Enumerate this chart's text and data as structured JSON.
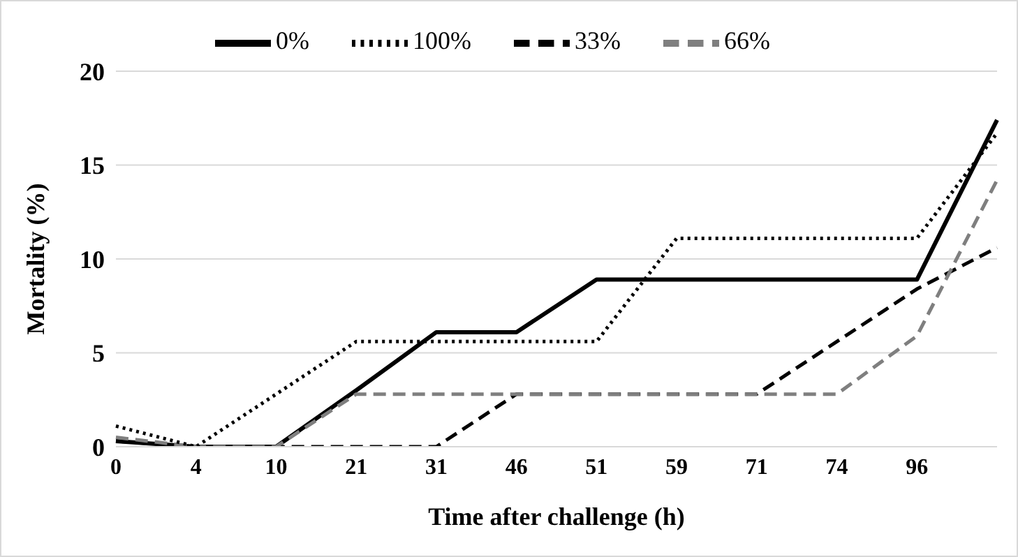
{
  "chart_data": {
    "type": "line",
    "xlabel": "Time after challenge (h)",
    "ylabel": "Mortality (%)",
    "categories": [
      "0",
      "4",
      "10",
      "21",
      "31",
      "46",
      "51",
      "59",
      "71",
      "74",
      "96",
      null
    ],
    "series": [
      {
        "name": "0%",
        "color": "#000000",
        "line_style": "solid",
        "values": [
          0.3,
          0,
          0,
          3,
          6.1,
          6.1,
          8.9,
          8.9,
          8.9,
          8.9,
          8.9,
          17.4
        ]
      },
      {
        "name": "33%",
        "color": "#000000",
        "line_style": "dashed",
        "values": [
          0.3,
          0,
          0,
          0,
          0,
          2.8,
          2.8,
          2.8,
          2.8,
          5.6,
          8.4,
          10.6
        ]
      },
      {
        "name": "66%",
        "color": "#7f7f7f",
        "line_style": "dashed",
        "values": [
          0.5,
          0,
          0,
          2.8,
          2.8,
          2.8,
          2.8,
          2.8,
          2.8,
          2.8,
          5.9,
          14.2
        ]
      },
      {
        "name": "100%",
        "color": "#000000",
        "line_style": "dotted",
        "values": [
          1.1,
          0,
          2.8,
          5.6,
          5.6,
          5.6,
          5.6,
          11.1,
          11.1,
          11.1,
          11.1,
          16.7
        ]
      }
    ],
    "ylim": [
      0,
      20
    ],
    "yticks": [
      0,
      5,
      10,
      15,
      20
    ],
    "grid": "y",
    "legend": "top",
    "marker": "none"
  }
}
